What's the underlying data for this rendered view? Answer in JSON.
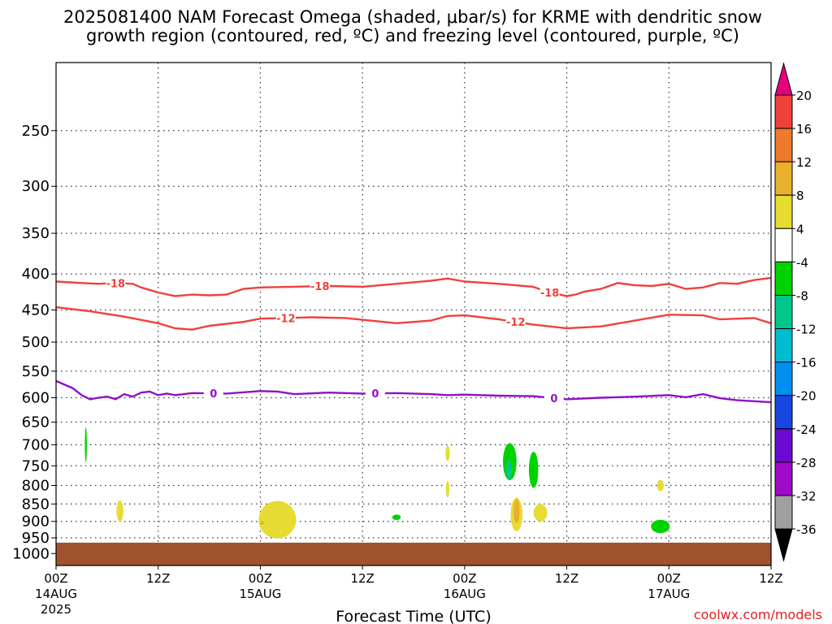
{
  "chart_data": {
    "type": "heatmap",
    "title_line1": "2025081400 NAM Forecast Omega (shaded, μbar/s) for KRME with dendritic snow",
    "title_line2": "growth region (contoured, red, ºC) and freezing level (contoured, purple, ºC)",
    "xlabel": "Forecast Time (UTC)",
    "credit": "coolwx.com/models",
    "x_unit": "forecast hour",
    "xlim": [
      0,
      84
    ],
    "x_ticks": [
      {
        "hour": 0,
        "label": "00Z",
        "label2": "14AUG",
        "label3": "2025"
      },
      {
        "hour": 12,
        "label": "12Z",
        "label2": "",
        "label3": ""
      },
      {
        "hour": 24,
        "label": "00Z",
        "label2": "15AUG",
        "label3": ""
      },
      {
        "hour": 36,
        "label": "12Z",
        "label2": "",
        "label3": ""
      },
      {
        "hour": 48,
        "label": "00Z",
        "label2": "16AUG",
        "label3": ""
      },
      {
        "hour": 60,
        "label": "12Z",
        "label2": "",
        "label3": ""
      },
      {
        "hour": 72,
        "label": "00Z",
        "label2": "17AUG",
        "label3": ""
      },
      {
        "hour": 84,
        "label": "12Z",
        "label2": "",
        "label3": ""
      }
    ],
    "y_unit": "hPa",
    "ylim": [
      1040,
      200
    ],
    "y_ticks": [
      250,
      300,
      350,
      400,
      450,
      500,
      550,
      600,
      650,
      700,
      750,
      800,
      850,
      900,
      950,
      1000
    ],
    "grid": true,
    "colorbar": {
      "labels": [
        "20",
        "16",
        "12",
        "8",
        "4",
        "-4",
        "-8",
        "-12",
        "-16",
        "-20",
        "-24",
        "-28",
        "-32",
        "-36"
      ],
      "top_arrow_color": "#e6007e",
      "bottom_arrow_color": "#000000",
      "bins": [
        {
          "from": 16,
          "to": 20,
          "color": "#f0403c"
        },
        {
          "from": 12,
          "to": 16,
          "color": "#ee7a2c"
        },
        {
          "from": 8,
          "to": 12,
          "color": "#e8b02c"
        },
        {
          "from": 4,
          "to": 8,
          "color": "#e6dc32"
        },
        {
          "from": -4,
          "to": 4,
          "color": "#ffffff"
        },
        {
          "from": -8,
          "to": -4,
          "color": "#00d200"
        },
        {
          "from": -12,
          "to": -8,
          "color": "#00c88c"
        },
        {
          "from": -16,
          "to": -12,
          "color": "#00bcd0"
        },
        {
          "from": -20,
          "to": -16,
          "color": "#0090f0"
        },
        {
          "from": -24,
          "to": -20,
          "color": "#1846e0"
        },
        {
          "from": -28,
          "to": -24,
          "color": "#6a0ad2"
        },
        {
          "from": -32,
          "to": -28,
          "color": "#a00ac8"
        },
        {
          "from": -36,
          "to": -32,
          "color": "#a0a0a0"
        }
      ]
    },
    "series": [
      {
        "kind": "contour",
        "value": "-18",
        "color": "#f0403c",
        "label_hours": [
          7,
          31,
          58
        ],
        "points": [
          [
            0,
            410
          ],
          [
            3,
            412
          ],
          [
            5,
            413
          ],
          [
            7,
            412
          ],
          [
            9,
            413
          ],
          [
            10,
            418
          ],
          [
            12,
            425
          ],
          [
            14,
            430
          ],
          [
            16,
            428
          ],
          [
            18,
            429
          ],
          [
            20,
            428
          ],
          [
            22,
            420
          ],
          [
            24,
            418
          ],
          [
            28,
            417
          ],
          [
            32,
            416
          ],
          [
            36,
            417
          ],
          [
            40,
            413
          ],
          [
            44,
            409
          ],
          [
            46,
            406
          ],
          [
            48,
            410
          ],
          [
            52,
            413
          ],
          [
            56,
            417
          ],
          [
            58,
            425
          ],
          [
            60,
            430
          ],
          [
            61,
            428
          ],
          [
            62,
            424
          ],
          [
            64,
            420
          ],
          [
            66,
            412
          ],
          [
            68,
            415
          ],
          [
            70,
            416
          ],
          [
            72,
            413
          ],
          [
            74,
            420
          ],
          [
            76,
            418
          ],
          [
            78,
            412
          ],
          [
            80,
            413
          ],
          [
            82,
            408
          ],
          [
            84,
            405
          ]
        ]
      },
      {
        "kind": "contour",
        "value": "-12",
        "color": "#f0403c",
        "label_hours": [
          27,
          54
        ],
        "points": [
          [
            0,
            446
          ],
          [
            4,
            452
          ],
          [
            8,
            460
          ],
          [
            12,
            470
          ],
          [
            14,
            478
          ],
          [
            16,
            480
          ],
          [
            18,
            474
          ],
          [
            22,
            468
          ],
          [
            24,
            463
          ],
          [
            30,
            461
          ],
          [
            34,
            462
          ],
          [
            40,
            470
          ],
          [
            44,
            466
          ],
          [
            46,
            459
          ],
          [
            48,
            458
          ],
          [
            52,
            464
          ],
          [
            56,
            472
          ],
          [
            60,
            478
          ],
          [
            64,
            475
          ],
          [
            68,
            466
          ],
          [
            72,
            457
          ],
          [
            76,
            458
          ],
          [
            78,
            464
          ],
          [
            82,
            462
          ],
          [
            84,
            470
          ]
        ]
      },
      {
        "kind": "contour",
        "value": "0",
        "color": "#9010c8",
        "label_hours": [
          18.5,
          37.5,
          58.5
        ],
        "points": [
          [
            0,
            568
          ],
          [
            2,
            582
          ],
          [
            3,
            595
          ],
          [
            4,
            603
          ],
          [
            5,
            600
          ],
          [
            6,
            598
          ],
          [
            7,
            603
          ],
          [
            8,
            593
          ],
          [
            9,
            598
          ],
          [
            10,
            590
          ],
          [
            11,
            588
          ],
          [
            12,
            595
          ],
          [
            13,
            592
          ],
          [
            14,
            595
          ],
          [
            16,
            591
          ],
          [
            20,
            592
          ],
          [
            24,
            587
          ],
          [
            26,
            588
          ],
          [
            28,
            593
          ],
          [
            32,
            590
          ],
          [
            36,
            592
          ],
          [
            40,
            591
          ],
          [
            44,
            593
          ],
          [
            46,
            595
          ],
          [
            48,
            594
          ],
          [
            52,
            596
          ],
          [
            56,
            597
          ],
          [
            60,
            603
          ],
          [
            64,
            600
          ],
          [
            68,
            598
          ],
          [
            72,
            595
          ],
          [
            74,
            599
          ],
          [
            76,
            593
          ],
          [
            78,
            601
          ],
          [
            80,
            605
          ],
          [
            84,
            609
          ]
        ]
      }
    ],
    "surface": {
      "label": "terrain",
      "color": "#a0522d",
      "pressure_top_hPa": 965
    }
  }
}
